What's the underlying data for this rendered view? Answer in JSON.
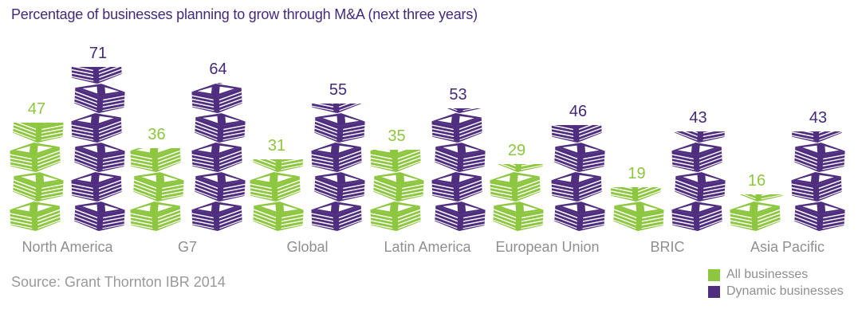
{
  "page": {
    "title": "Percentage of businesses planning to grow through M&A (next three years)",
    "source": "Source: Grant Thornton IBR 2014"
  },
  "chart_data": {
    "type": "bar",
    "style": "pictogram-money-stacks",
    "title": "Percentage of businesses planning to grow through M&A (next three years)",
    "unit": "percent",
    "xlabel": "",
    "ylabel": "",
    "ylim": [
      0,
      80
    ],
    "grid": false,
    "axes_visible": false,
    "legend_position": "bottom-right",
    "icon": "money-stack-icon",
    "categories": [
      "North America",
      "G7",
      "Global",
      "Latin America",
      "European Union",
      "BRIC",
      "Asia Pacific"
    ],
    "series": [
      {
        "name": "All businesses",
        "color": "#8DC63F",
        "label_color": "#8DC63F",
        "values": [
          47,
          36,
          31,
          35,
          29,
          19,
          16
        ]
      },
      {
        "name": "Dynamic businesses",
        "color": "#4F2D7F",
        "label_color": "#44297B",
        "values": [
          71,
          64,
          55,
          53,
          46,
          43,
          43
        ]
      }
    ]
  }
}
